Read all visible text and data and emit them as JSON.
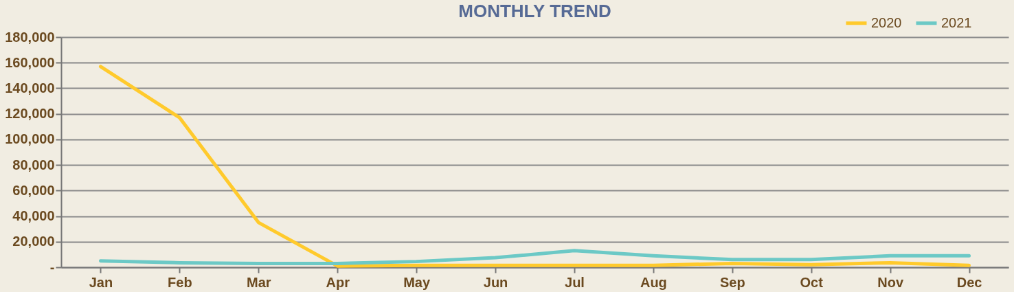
{
  "chart_data": {
    "type": "line",
    "title": "MONTHLY TREND",
    "categories": [
      "Jan",
      "Feb",
      "Mar",
      "Apr",
      "May",
      "Jun",
      "Jul",
      "Aug",
      "Sep",
      "Oct",
      "Nov",
      "Dec"
    ],
    "series": [
      {
        "name": "2020",
        "color": "#ffca2c",
        "values": [
          157000,
          117000,
          35000,
          1000,
          1500,
          1500,
          1500,
          1500,
          3000,
          2000,
          3500,
          1500
        ]
      },
      {
        "name": "2021",
        "color": "#6cc9c6",
        "values": [
          5000,
          3500,
          3000,
          3000,
          4500,
          7500,
          13000,
          9000,
          6000,
          6000,
          9000,
          9000
        ]
      }
    ],
    "ylim": [
      0,
      180000
    ],
    "yticks": [
      {
        "value": 0,
        "label": "-"
      },
      {
        "value": 20000,
        "label": "20,000"
      },
      {
        "value": 40000,
        "label": "40,000"
      },
      {
        "value": 60000,
        "label": "60,000"
      },
      {
        "value": 80000,
        "label": "80,000"
      },
      {
        "value": 100000,
        "label": "100,000"
      },
      {
        "value": 120000,
        "label": "120,000"
      },
      {
        "value": 140000,
        "label": "140,000"
      },
      {
        "value": 160000,
        "label": "160,000"
      },
      {
        "value": 180000,
        "label": "180,000"
      }
    ],
    "grid": "y",
    "legend": "top right",
    "marker": "none",
    "line_style": "solid"
  }
}
